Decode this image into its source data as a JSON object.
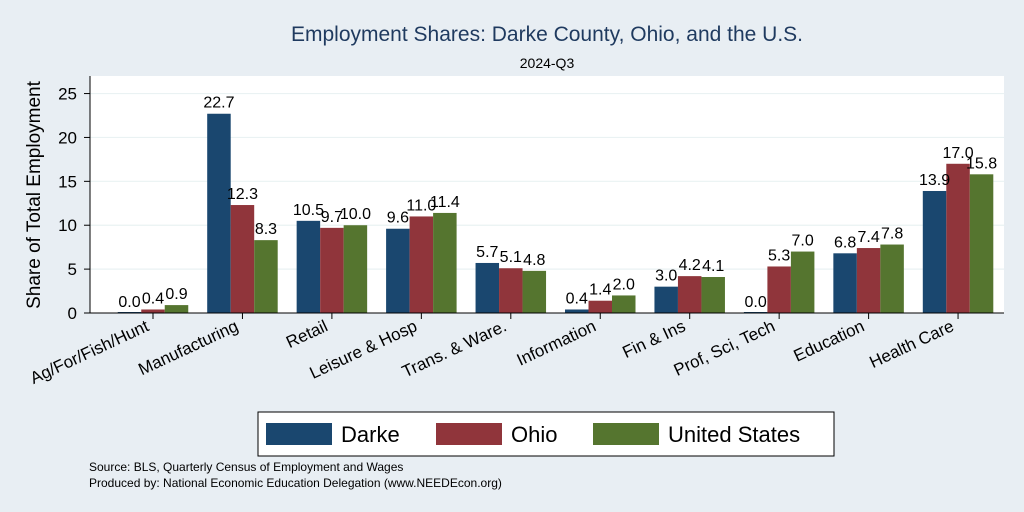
{
  "chart_data": {
    "type": "bar",
    "title": "Employment Shares: Darke County, Ohio, and the U.S.",
    "subtitle": "2024-Q3",
    "ylabel": "Share of Total Employment",
    "xlabel": "",
    "ylim": [
      0,
      27
    ],
    "yticks": [
      0,
      5,
      10,
      15,
      20,
      25
    ],
    "grid": true,
    "legend_position": "bottom",
    "categories": [
      "Ag/For/Fish/Hunt",
      "Manufacturing",
      "Retail",
      "Leisure & Hosp",
      "Trans. & Ware.",
      "Information",
      "Fin & Ins",
      "Prof, Sci, Tech",
      "Education",
      "Health Care"
    ],
    "series": [
      {
        "name": "Darke",
        "color": "#1a476f",
        "values": [
          0.0,
          22.7,
          10.5,
          9.6,
          5.7,
          0.4,
          3.0,
          0.0,
          6.8,
          13.9
        ]
      },
      {
        "name": "Ohio",
        "color": "#90353b",
        "values": [
          0.4,
          12.3,
          9.7,
          11.0,
          5.1,
          1.4,
          4.2,
          5.3,
          7.4,
          17.0
        ]
      },
      {
        "name": "United States",
        "color": "#55752f",
        "values": [
          0.9,
          8.3,
          10.0,
          11.4,
          4.8,
          2.0,
          4.1,
          7.0,
          7.8,
          15.8
        ]
      }
    ],
    "value_labels": [
      [
        "0.0",
        "22.7",
        "10.5",
        "9.6",
        "5.7",
        "0.4",
        "3.0",
        "0.0",
        "6.8",
        "13.9"
      ],
      [
        "0.4",
        "12.3",
        "9.7",
        "11.0",
        "5.1",
        "1.4",
        "4.2",
        "5.3",
        "7.4",
        "17.0"
      ],
      [
        "0.9",
        "8.3",
        "10.0",
        "11.4",
        "4.8",
        "2.0",
        "4.1",
        "7.0",
        "7.8",
        "15.8"
      ]
    ]
  },
  "notes": {
    "source": "Source: BLS, Quarterly Census of Employment and Wages",
    "produced": "Produced by: National Economic Education Delegation (www.NEEDEcon.org)"
  }
}
